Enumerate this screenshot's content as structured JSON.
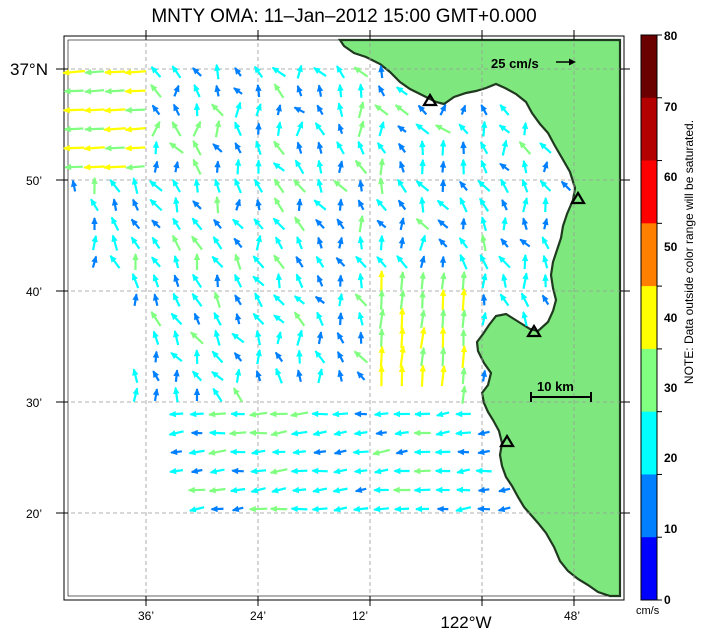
{
  "title": "MNTY OMA: 11–Jan–2012 15:00 GMT+0.000",
  "axes": {
    "lat_labels": [
      "37°N",
      "50’",
      "40’",
      "30’",
      "20’"
    ],
    "lat_values": [
      "37°N",
      "36°50’",
      "36°40’",
      "36°30’",
      "36°20’"
    ],
    "lon_labels": [
      "36’",
      "24’",
      "12’",
      "122°W",
      "48’"
    ],
    "lon_values": [
      "122°36’W",
      "122°24’W",
      "122°12’W",
      "122°W",
      "121°48’W"
    ],
    "grid": "dashed"
  },
  "reference_arrow": {
    "label": "25 cm/s",
    "speed_cm_s": 25
  },
  "scale_bar": {
    "label": "10 km",
    "length_km": 10
  },
  "stations": [
    {
      "name": "radar-site-1",
      "shape": "triangle"
    },
    {
      "name": "radar-site-2",
      "shape": "triangle"
    },
    {
      "name": "radar-site-3",
      "shape": "triangle"
    },
    {
      "name": "radar-site-4",
      "shape": "triangle"
    }
  ],
  "colorbar": {
    "ticks": [
      "80",
      "70",
      "60",
      "50",
      "40",
      "30",
      "20",
      "10",
      "0"
    ],
    "unit": "cm/s",
    "note": "NOTE: Data outside color range will be saturated.",
    "colors": [
      "#6b0000",
      "#b30000",
      "#ff0000",
      "#ff8000",
      "#ffff00",
      "#80ff80",
      "#00ffff",
      "#0080ff",
      "#0000ff"
    ]
  },
  "colors": {
    "land": "#7ee87e",
    "coast": "#2a4a2a",
    "grid": "#999999"
  }
}
